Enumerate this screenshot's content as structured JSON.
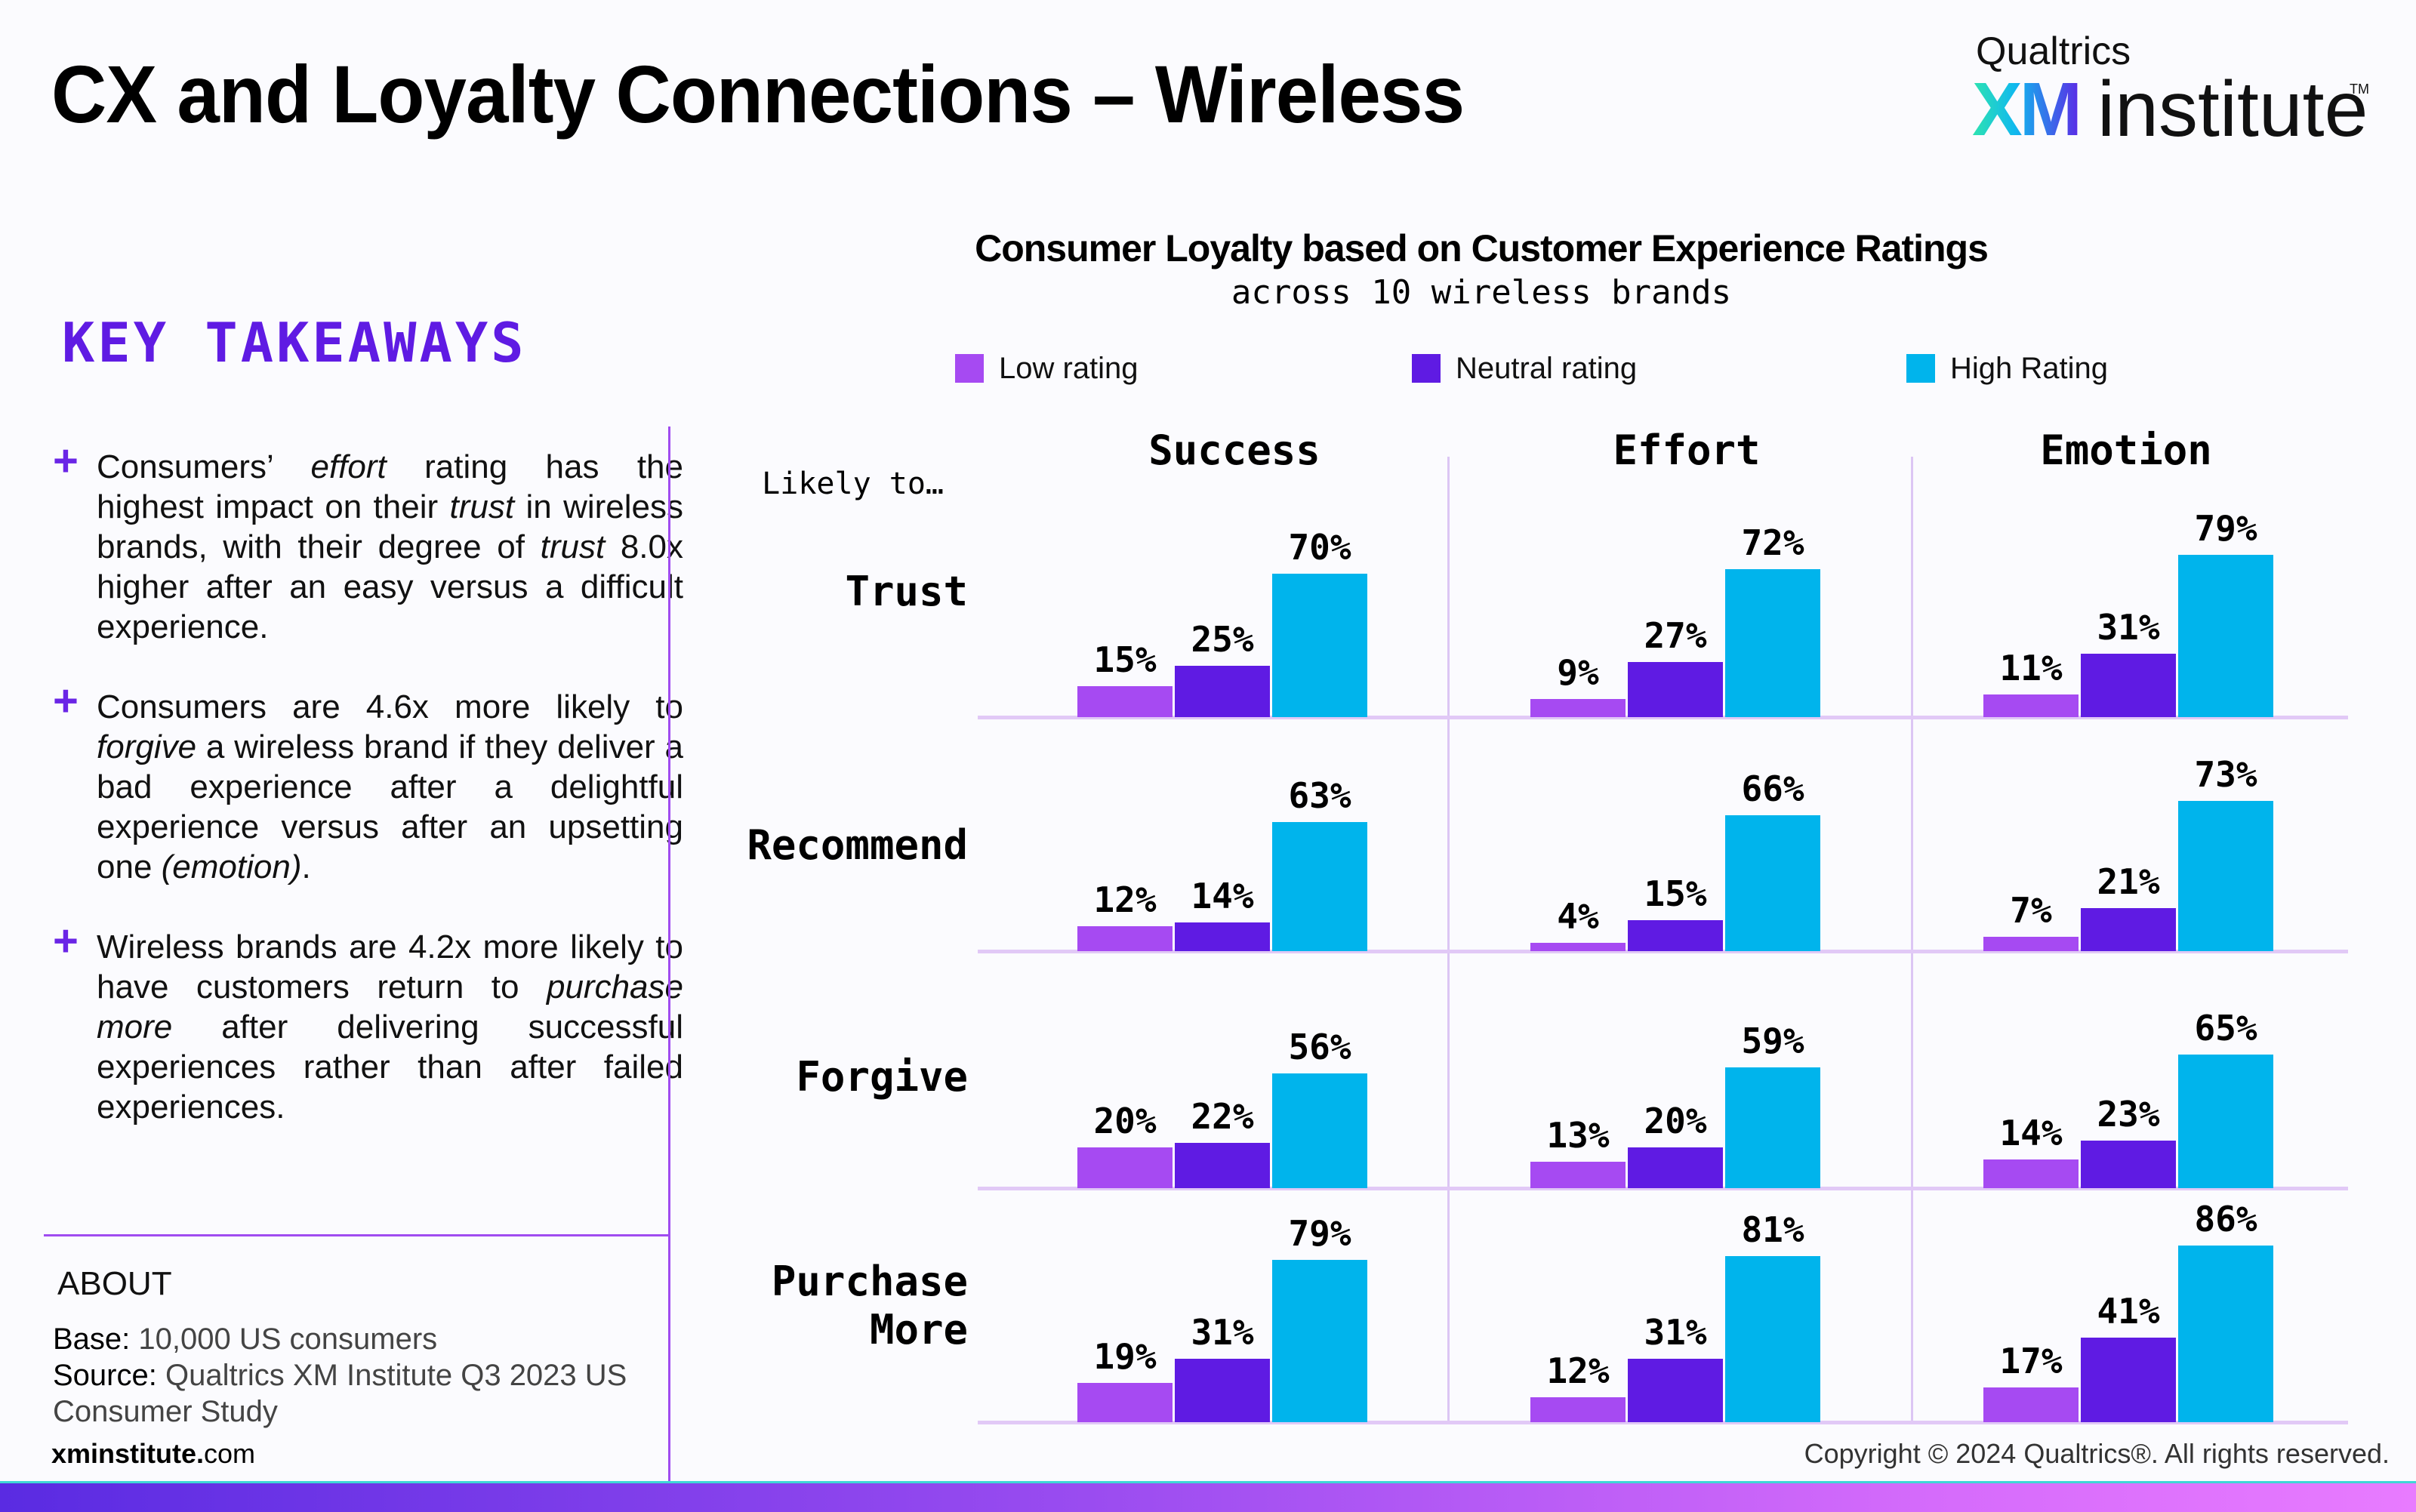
{
  "header": {
    "title": "CX and Loyalty Connections – Wireless",
    "logo": {
      "top": "Qualtrics",
      "xm": "XM",
      "institute": "institute",
      "tm": "TM"
    }
  },
  "key_takeaways": {
    "heading": "KEY TAKEAWAYS",
    "bullet_icon": "plus-icon",
    "items": [
      {
        "html": "Consumers’ <em>effort</em> rating has the highest impact on their <em>trust</em> in wireless brands, with their degree of <em>trust</em> 8.0x higher after an easy versus a difficult experience."
      },
      {
        "html": "Consumers are 4.6x more likely to <em>forgive</em> a wireless brand if they deliver a bad experience after a delightful experience versus after an upsetting one <em>(emotion)</em>."
      },
      {
        "html": "Wireless brands are 4.2x more likely to have customers return to <em>purchase more</em> after delivering successful experiences rather than after failed experiences."
      }
    ]
  },
  "about": {
    "heading": "ABOUT",
    "base_label": "Base:",
    "base_value": "10,000 US consumers",
    "source_label": "Source:",
    "source_value_line1": "Qualtrics XM Institute Q3 2023 US",
    "source_value_line2": "Consumer Study",
    "site_bold": "xminstitute.",
    "site_rest": "com"
  },
  "footer": {
    "copyright": "Copyright © 2024 Qualtrics®. All rights reserved."
  },
  "colors": {
    "low": "#a64af2",
    "neutral": "#5f1be3",
    "high": "#00b4ec",
    "accent": "#5f1be3"
  },
  "chart_data": {
    "type": "bar",
    "title": "Consumer Loyalty based on Customer Experience Ratings",
    "subtitle": "across 10 wireless brands",
    "row_header": "Likely to…",
    "legend": [
      "Low rating",
      "Neutral rating",
      "High Rating"
    ],
    "legend_placement": "top",
    "columns": [
      "Success",
      "Effort",
      "Emotion"
    ],
    "rows": [
      "Trust",
      "Recommend",
      "Forgive",
      "Purchase More"
    ],
    "row_label_lines": [
      [
        "Trust"
      ],
      [
        "Recommend"
      ],
      [
        "Forgive"
      ],
      [
        "Purchase",
        "More"
      ]
    ],
    "unit": "%",
    "ylim": [
      0,
      100
    ],
    "values": {
      "Trust": {
        "Success": [
          15,
          25,
          70
        ],
        "Effort": [
          9,
          27,
          72
        ],
        "Emotion": [
          11,
          31,
          79
        ]
      },
      "Recommend": {
        "Success": [
          12,
          14,
          63
        ],
        "Effort": [
          4,
          15,
          66
        ],
        "Emotion": [
          7,
          21,
          73
        ]
      },
      "Forgive": {
        "Success": [
          20,
          22,
          56
        ],
        "Effort": [
          13,
          20,
          59
        ],
        "Emotion": [
          14,
          23,
          65
        ]
      },
      "Purchase More": {
        "Success": [
          19,
          31,
          79
        ],
        "Effort": [
          12,
          31,
          81
        ],
        "Emotion": [
          17,
          41,
          86
        ]
      }
    }
  }
}
